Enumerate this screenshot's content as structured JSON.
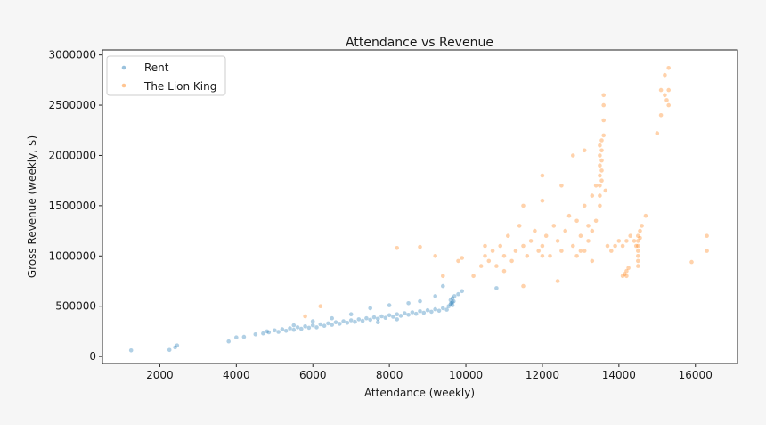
{
  "chart_data": {
    "type": "scatter",
    "title": "Attendance vs Revenue",
    "xlabel": "Attendance (weekly)",
    "ylabel": "Gross Revenue (weekly, $)",
    "xlim": [
      500,
      17100
    ],
    "ylim": [
      -70000,
      3050000
    ],
    "xticks": [
      2000,
      4000,
      6000,
      8000,
      10000,
      12000,
      14000,
      16000
    ],
    "yticks": [
      0,
      500000,
      1000000,
      1500000,
      2000000,
      2500000,
      3000000
    ],
    "grid": false,
    "legend_position": "upper-left",
    "marker_alpha": 0.35,
    "series": [
      {
        "name": "Rent",
        "color": "#1f77b4",
        "points": [
          [
            1250,
            60000
          ],
          [
            2250,
            65000
          ],
          [
            2400,
            90000
          ],
          [
            2450,
            110000
          ],
          [
            3800,
            150000
          ],
          [
            4000,
            190000
          ],
          [
            4200,
            195000
          ],
          [
            4500,
            220000
          ],
          [
            4700,
            230000
          ],
          [
            4800,
            250000
          ],
          [
            4850,
            240000
          ],
          [
            5000,
            260000
          ],
          [
            5100,
            245000
          ],
          [
            5200,
            270000
          ],
          [
            5300,
            255000
          ],
          [
            5400,
            280000
          ],
          [
            5500,
            265000
          ],
          [
            5600,
            290000
          ],
          [
            5700,
            275000
          ],
          [
            5800,
            300000
          ],
          [
            5900,
            285000
          ],
          [
            6000,
            310000
          ],
          [
            6100,
            290000
          ],
          [
            6200,
            320000
          ],
          [
            6300,
            305000
          ],
          [
            6400,
            330000
          ],
          [
            6500,
            315000
          ],
          [
            6600,
            340000
          ],
          [
            6700,
            325000
          ],
          [
            6800,
            350000
          ],
          [
            6900,
            335000
          ],
          [
            7000,
            360000
          ],
          [
            7100,
            345000
          ],
          [
            7200,
            370000
          ],
          [
            7300,
            355000
          ],
          [
            7400,
            380000
          ],
          [
            7500,
            365000
          ],
          [
            7600,
            390000
          ],
          [
            7700,
            375000
          ],
          [
            7800,
            400000
          ],
          [
            7900,
            385000
          ],
          [
            8000,
            410000
          ],
          [
            8100,
            395000
          ],
          [
            8200,
            420000
          ],
          [
            8300,
            405000
          ],
          [
            8400,
            430000
          ],
          [
            8500,
            415000
          ],
          [
            8600,
            440000
          ],
          [
            8700,
            425000
          ],
          [
            8800,
            450000
          ],
          [
            8900,
            435000
          ],
          [
            9000,
            460000
          ],
          [
            9100,
            445000
          ],
          [
            9200,
            470000
          ],
          [
            9300,
            455000
          ],
          [
            9400,
            480000
          ],
          [
            9500,
            465000
          ],
          [
            9550,
            500000
          ],
          [
            9600,
            520000
          ],
          [
            9650,
            540000
          ],
          [
            9600,
            560000
          ],
          [
            9650,
            580000
          ],
          [
            9700,
            600000
          ],
          [
            9650,
            510000
          ],
          [
            9620,
            530000
          ],
          [
            9680,
            550000
          ],
          [
            7500,
            480000
          ],
          [
            8000,
            510000
          ],
          [
            8500,
            530000
          ],
          [
            8800,
            550000
          ],
          [
            9200,
            600000
          ],
          [
            9400,
            700000
          ],
          [
            9800,
            620000
          ],
          [
            9900,
            650000
          ],
          [
            6500,
            380000
          ],
          [
            7000,
            420000
          ],
          [
            6000,
            350000
          ],
          [
            5500,
            310000
          ],
          [
            8200,
            370000
          ],
          [
            7700,
            340000
          ],
          [
            10800,
            680000
          ]
        ]
      },
      {
        "name": "The Lion King",
        "color": "#ff7f0e",
        "points": [
          [
            5800,
            400000
          ],
          [
            6200,
            500000
          ],
          [
            8200,
            1080000
          ],
          [
            8800,
            1090000
          ],
          [
            9200,
            1000000
          ],
          [
            9400,
            800000
          ],
          [
            9800,
            950000
          ],
          [
            9900,
            980000
          ],
          [
            10200,
            800000
          ],
          [
            10400,
            900000
          ],
          [
            10500,
            1000000
          ],
          [
            10600,
            950000
          ],
          [
            10700,
            1050000
          ],
          [
            10800,
            900000
          ],
          [
            10900,
            1100000
          ],
          [
            11000,
            1000000
          ],
          [
            11100,
            1200000
          ],
          [
            11200,
            950000
          ],
          [
            11300,
            1050000
          ],
          [
            11400,
            1300000
          ],
          [
            11500,
            1100000
          ],
          [
            11600,
            1000000
          ],
          [
            11700,
            1150000
          ],
          [
            11800,
            1250000
          ],
          [
            11900,
            1050000
          ],
          [
            12000,
            1100000
          ],
          [
            12100,
            1200000
          ],
          [
            12200,
            1000000
          ],
          [
            12300,
            1300000
          ],
          [
            12400,
            1150000
          ],
          [
            12500,
            1050000
          ],
          [
            12600,
            1250000
          ],
          [
            12700,
            1400000
          ],
          [
            12800,
            1100000
          ],
          [
            12900,
            1350000
          ],
          [
            13000,
            1200000
          ],
          [
            13100,
            1500000
          ],
          [
            13200,
            1300000
          ],
          [
            13300,
            1600000
          ],
          [
            13400,
            1700000
          ],
          [
            12900,
            1000000
          ],
          [
            13000,
            1050000
          ],
          [
            13200,
            1150000
          ],
          [
            13300,
            1250000
          ],
          [
            13400,
            1350000
          ],
          [
            13500,
            1500000
          ],
          [
            13500,
            1600000
          ],
          [
            13500,
            1700000
          ],
          [
            13500,
            1800000
          ],
          [
            13500,
            1900000
          ],
          [
            13500,
            2000000
          ],
          [
            13500,
            2100000
          ],
          [
            13550,
            1750000
          ],
          [
            13550,
            1850000
          ],
          [
            13550,
            1950000
          ],
          [
            13550,
            2050000
          ],
          [
            13550,
            2150000
          ],
          [
            13600,
            2200000
          ],
          [
            13600,
            2350000
          ],
          [
            13600,
            2500000
          ],
          [
            13600,
            2600000
          ],
          [
            13650,
            1650000
          ],
          [
            13700,
            1100000
          ],
          [
            13800,
            1050000
          ],
          [
            13900,
            1100000
          ],
          [
            14000,
            1150000
          ],
          [
            14100,
            1100000
          ],
          [
            14200,
            1150000
          ],
          [
            14300,
            1200000
          ],
          [
            14400,
            1150000
          ],
          [
            14450,
            1100000
          ],
          [
            14500,
            1000000
          ],
          [
            14500,
            1050000
          ],
          [
            14500,
            1100000
          ],
          [
            14500,
            1150000
          ],
          [
            14500,
            1200000
          ],
          [
            14550,
            1180000
          ],
          [
            14550,
            1250000
          ],
          [
            14500,
            900000
          ],
          [
            14500,
            950000
          ],
          [
            14100,
            800000
          ],
          [
            14150,
            820000
          ],
          [
            14200,
            850000
          ],
          [
            14200,
            800000
          ],
          [
            14250,
            880000
          ],
          [
            14600,
            1300000
          ],
          [
            14700,
            1400000
          ],
          [
            15000,
            2220000
          ],
          [
            15100,
            2400000
          ],
          [
            15100,
            2650000
          ],
          [
            15200,
            2600000
          ],
          [
            15200,
            2800000
          ],
          [
            15300,
            2650000
          ],
          [
            15300,
            2870000
          ],
          [
            15300,
            2500000
          ],
          [
            15250,
            2550000
          ],
          [
            15900,
            940000
          ],
          [
            16300,
            1200000
          ],
          [
            16300,
            1050000
          ],
          [
            12000,
            1800000
          ],
          [
            12500,
            1700000
          ],
          [
            12800,
            2000000
          ],
          [
            13100,
            2050000
          ],
          [
            11500,
            1500000
          ],
          [
            12000,
            1550000
          ],
          [
            10500,
            1100000
          ],
          [
            11000,
            850000
          ],
          [
            11500,
            700000
          ],
          [
            12000,
            1000000
          ],
          [
            12400,
            750000
          ],
          [
            13300,
            950000
          ],
          [
            13100,
            1050000
          ]
        ]
      }
    ]
  }
}
